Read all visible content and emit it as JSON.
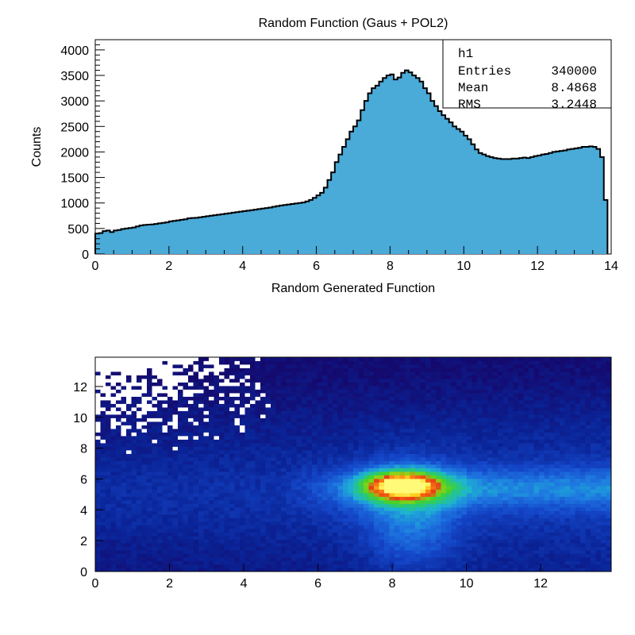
{
  "chart_data": [
    {
      "type": "bar",
      "title": "Random Function (Gaus + POL2)",
      "xlabel": "Random Generated Function",
      "ylabel": "Counts",
      "xlim": [
        0,
        14
      ],
      "ylim": [
        0,
        4200
      ],
      "xticks": [
        "0",
        "2",
        "4",
        "6",
        "8",
        "10",
        "12",
        "14"
      ],
      "yticks": [
        "0",
        "500",
        "1000",
        "1500",
        "2000",
        "2500",
        "3000",
        "3500",
        "4000"
      ],
      "fill_color": "#4aaad8",
      "bin_width": 0.1,
      "x_start": 0.0,
      "values": [
        400,
        410,
        450,
        460,
        430,
        460,
        470,
        490,
        500,
        510,
        520,
        540,
        560,
        570,
        575,
        580,
        590,
        600,
        610,
        620,
        640,
        650,
        660,
        670,
        680,
        700,
        705,
        710,
        720,
        730,
        740,
        750,
        760,
        770,
        780,
        790,
        800,
        810,
        820,
        830,
        840,
        850,
        860,
        870,
        880,
        890,
        900,
        910,
        925,
        940,
        950,
        960,
        970,
        980,
        990,
        1000,
        1010,
        1030,
        1060,
        1100,
        1150,
        1200,
        1300,
        1450,
        1600,
        1800,
        1950,
        2100,
        2250,
        2400,
        2500,
        2620,
        2820,
        3000,
        3150,
        3250,
        3300,
        3380,
        3450,
        3500,
        3520,
        3420,
        3460,
        3550,
        3600,
        3560,
        3500,
        3450,
        3380,
        3250,
        3150,
        3000,
        2900,
        2800,
        2720,
        2650,
        2580,
        2500,
        2450,
        2400,
        2320,
        2250,
        2150,
        2050,
        1980,
        1950,
        1920,
        1900,
        1880,
        1870,
        1860,
        1860,
        1860,
        1870,
        1870,
        1880,
        1890,
        1880,
        1900,
        1920,
        1930,
        1950,
        1960,
        1980,
        2000,
        2010,
        2020,
        2030,
        2050,
        2060,
        2070,
        2080,
        2100,
        2100,
        2110,
        2100,
        2060,
        1900,
        1060
      ],
      "stats": {
        "name": "h1",
        "rows": [
          [
            "Entries",
            "340000"
          ],
          [
            "Mean",
            "8.4868"
          ],
          [
            "RMS",
            "3.2448"
          ]
        ]
      }
    },
    {
      "type": "heatmap",
      "xlim": [
        0,
        13.9
      ],
      "ylim": [
        0,
        13.9
      ],
      "xticks": [
        "0",
        "2",
        "4",
        "6",
        "8",
        "10",
        "12"
      ],
      "yticks": [
        "0",
        "2",
        "4",
        "6",
        "8",
        "10",
        "12"
      ],
      "background_color": "#ffffff",
      "description_peak": {
        "x": 8.3,
        "y": 5.6
      }
    }
  ]
}
